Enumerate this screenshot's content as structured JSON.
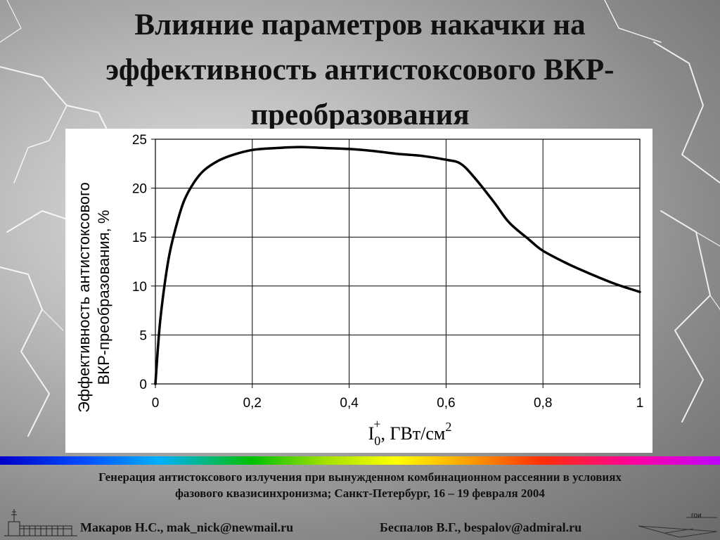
{
  "title": {
    "line1": "Влияние параметров накачки на",
    "line2": "эффективность антистоксового ВКР-",
    "line3": "преобразования"
  },
  "chart_data": {
    "type": "line",
    "title": "",
    "ylabel_line1": "Эффективность антистоксового",
    "ylabel_line2": "ВКР-преобразования, %",
    "xlabel_main": "I",
    "xlabel_sup": "+",
    "xlabel_sub": "0",
    "xlabel_rest": ", ГВт/см",
    "xlabel_exp": "2",
    "xlim": [
      0,
      1
    ],
    "ylim": [
      0,
      25
    ],
    "grid": true,
    "x_ticks": [
      "0",
      "0,2",
      "0,4",
      "0,6",
      "0,8",
      "1"
    ],
    "y_ticks": [
      "0",
      "5",
      "10",
      "15",
      "20",
      "25"
    ],
    "series": [
      {
        "x": [
          0,
          0.005,
          0.01,
          0.02,
          0.03,
          0.045,
          0.06,
          0.08,
          0.1,
          0.13,
          0.16,
          0.2,
          0.25,
          0.3,
          0.35,
          0.4,
          0.45,
          0.5,
          0.55,
          0.6,
          0.63,
          0.66,
          0.7,
          0.73,
          0.77,
          0.8,
          0.85,
          0.9,
          0.95,
          1.0
        ],
        "y": [
          0,
          3.5,
          6.5,
          10.5,
          13.5,
          16.5,
          18.8,
          20.6,
          21.8,
          22.8,
          23.4,
          23.9,
          24.1,
          24.2,
          24.1,
          24.0,
          23.8,
          23.5,
          23.3,
          22.9,
          22.5,
          21.0,
          18.5,
          16.5,
          14.8,
          13.6,
          12.3,
          11.2,
          10.2,
          9.4
        ]
      }
    ]
  },
  "footer": {
    "conference_line1": "Генерация антистоксового излучения при вынужденном комбинационном рассеянии в условиях",
    "conference_line2": "фазового квазисинхронизма; Санкт-Петербург, 16 – 19 февраля  2004",
    "author_left": "Макаров Н.С., mak_nick@newmail.ru",
    "author_right": "Беспалов В.Г., bespalov@admiral.ru",
    "logo_text": "гои"
  }
}
